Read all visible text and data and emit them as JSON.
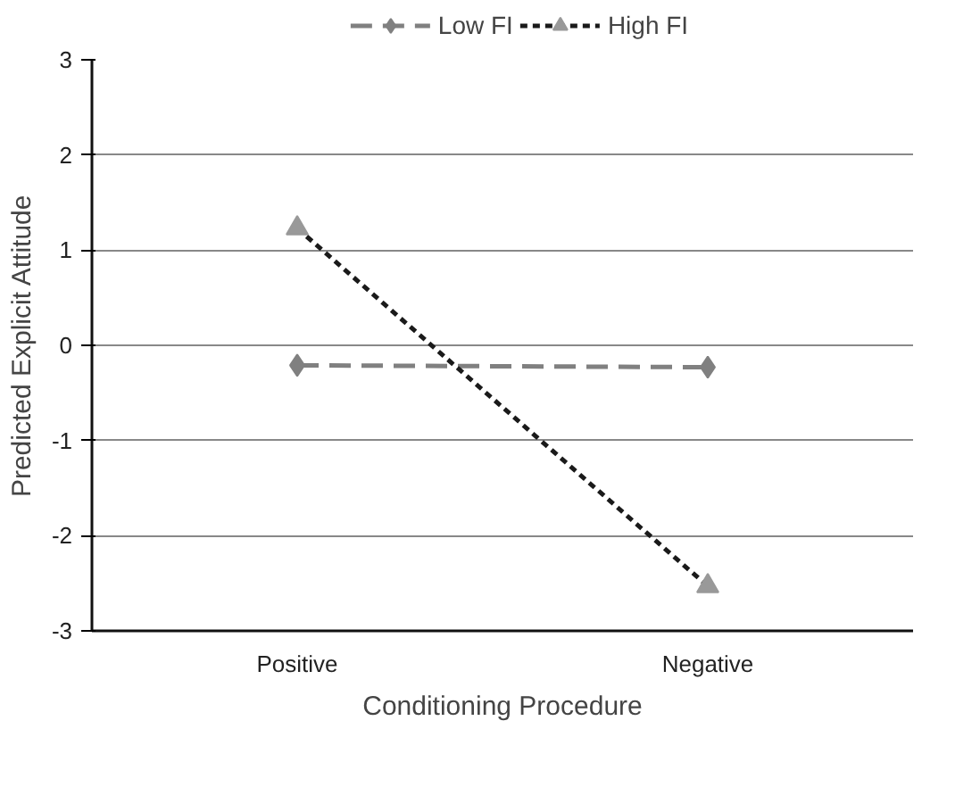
{
  "chart_data": {
    "type": "line",
    "xlabel": "Conditioning Procedure",
    "ylabel": "Predicted Explicit Attitude",
    "categories": [
      "Positive",
      "Negative"
    ],
    "series": [
      {
        "name": "Low FI",
        "color": "#808080",
        "values": [
          -0.21,
          -0.23
        ],
        "marker": "diamond",
        "line_style": "dashed"
      },
      {
        "name": "High FI",
        "color": "#1a1a1a",
        "values": [
          1.23,
          -2.53
        ],
        "marker": "triangle",
        "line_style": "dotted"
      }
    ],
    "ylim": [
      -3,
      3
    ],
    "yticks": [
      -3,
      -2,
      -1,
      0,
      1,
      2,
      3
    ],
    "grid": "y",
    "legend": "top"
  }
}
